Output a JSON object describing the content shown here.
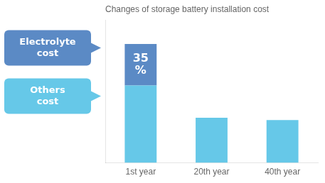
{
  "chart_data": {
    "type": "bar",
    "title": "Changes of storage battery installation cost",
    "categories": [
      "1st year",
      "20th year",
      "40th year"
    ],
    "series": [
      {
        "name": "Others\ncost",
        "color": "#66c8e8",
        "values": [
          65,
          38,
          36
        ]
      },
      {
        "name": "Electrolyte\ncost",
        "color": "#5b8ac5",
        "values": [
          35,
          0,
          0
        ],
        "data_labels": true,
        "value_labels": [
          "35\n%",
          null,
          null
        ]
      }
    ],
    "stacked": true,
    "ylim": [
      0,
      120
    ],
    "yticks": [],
    "grid": false,
    "tick_labels": "x",
    "legend": "left"
  }
}
